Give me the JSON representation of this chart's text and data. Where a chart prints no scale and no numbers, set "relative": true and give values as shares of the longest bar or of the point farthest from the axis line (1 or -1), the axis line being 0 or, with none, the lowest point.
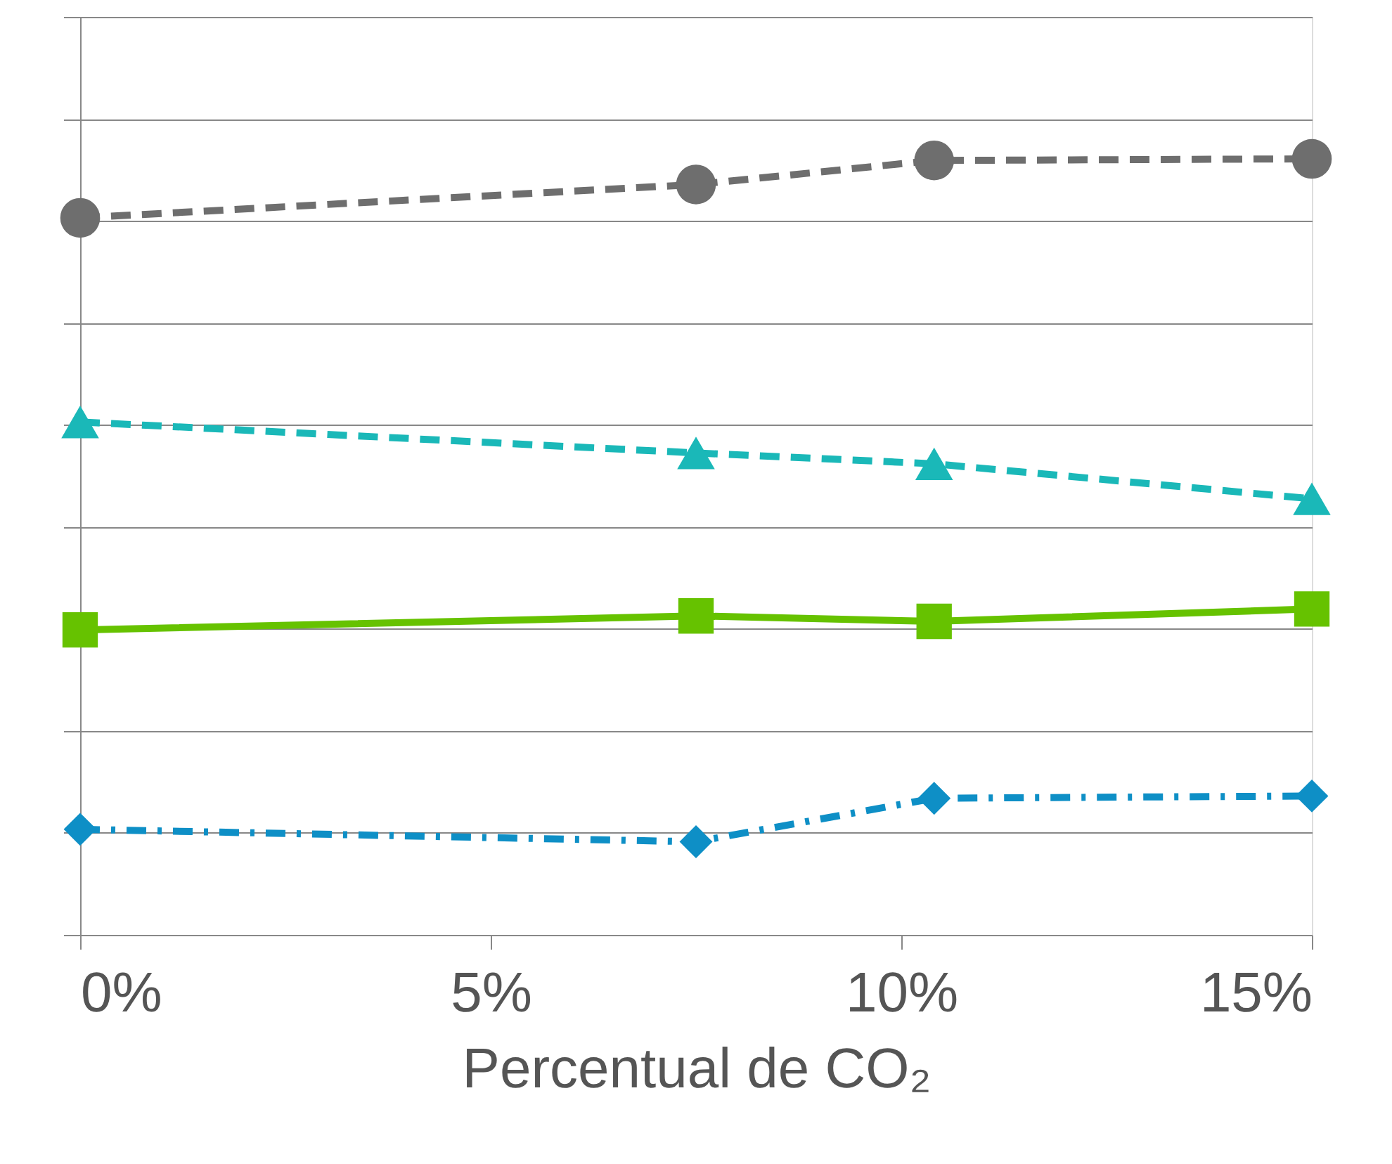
{
  "chart_data": {
    "type": "line",
    "relative": true,
    "xlabel": "Percentual de CO₂",
    "x": [
      0,
      7.5,
      10.4,
      15
    ],
    "xlim": [
      0,
      15
    ],
    "xticks": [
      {
        "value": 0,
        "label": "0%"
      },
      {
        "value": 5,
        "label": "5%"
      },
      {
        "value": 10,
        "label": "10%"
      },
      {
        "value": 15,
        "label": "15%"
      }
    ],
    "grid": "y",
    "tick_labels": "x",
    "series": [
      {
        "color": "#0e8fc6",
        "marker": "diamond",
        "line_style": "dashdot",
        "values": [
          0.136,
          0.12,
          0.176,
          0.179
        ]
      },
      {
        "color": "#66c200",
        "marker": "square",
        "line_style": "solid",
        "values": [
          0.393,
          0.411,
          0.404,
          0.42
        ]
      },
      {
        "color": "#1ab8b8",
        "marker": "triangle",
        "line_style": "dashed",
        "values": [
          0.661,
          0.621,
          0.607,
          0.562
        ]
      },
      {
        "color": "#6e6e6e",
        "marker": "circle",
        "line_style": "dashed",
        "values": [
          0.924,
          0.967,
          0.998,
          1
        ]
      }
    ]
  }
}
